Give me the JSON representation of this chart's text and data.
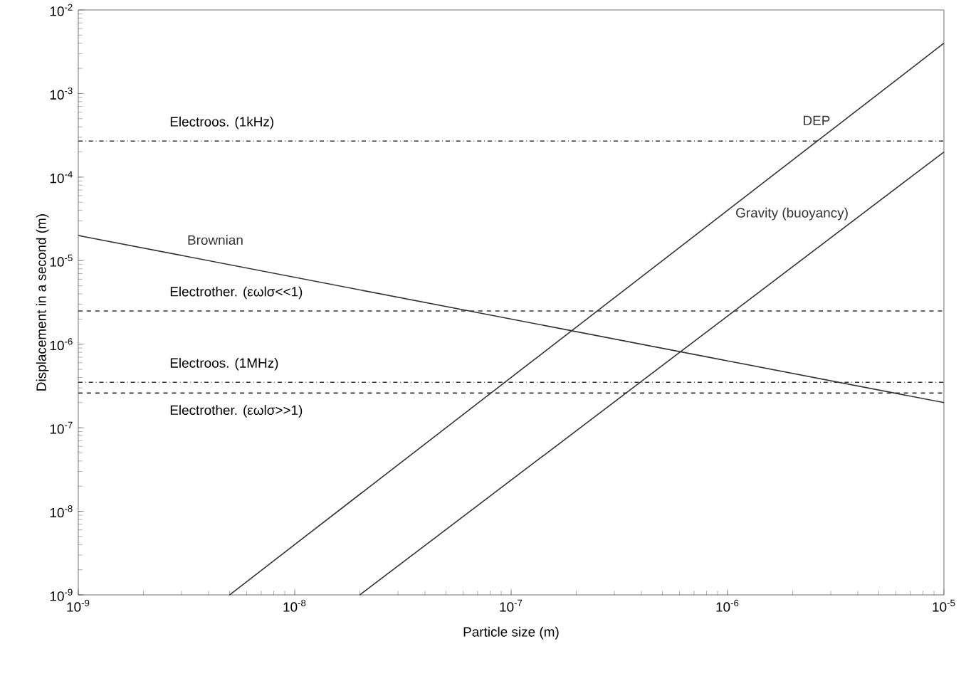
{
  "chart_data": {
    "type": "line",
    "xlabel": "Particle size (m)",
    "ylabel": "Displacement in a second (m)",
    "log": "xy",
    "xlim": [
      1e-09,
      1e-05
    ],
    "ylim": [
      1e-09,
      0.01
    ],
    "xticks": [
      {
        "value": 1e-09,
        "label": "10$^{-9}$"
      },
      {
        "value": 1e-08,
        "label": "10$^{-8}$"
      },
      {
        "value": 1e-07,
        "label": "10$^{-7}$"
      },
      {
        "value": 1e-06,
        "label": "10$^{-6}$"
      },
      {
        "value": 1e-05,
        "label": "10$^{-5}$"
      }
    ],
    "yticks": [
      {
        "value": 1e-09,
        "label": "10$^{-9}$"
      },
      {
        "value": 1e-08,
        "label": "10$^{-8}$"
      },
      {
        "value": 1e-07,
        "label": "10$^{-7}$"
      },
      {
        "value": 1e-06,
        "label": "10$^{-6}$"
      },
      {
        "value": 1e-05,
        "label": "10$^{-5}$"
      },
      {
        "value": 0.0001,
        "label": "10$^{-4}$"
      },
      {
        "value": 0.001,
        "label": "10$^{-3}$"
      },
      {
        "value": 0.01,
        "label": "10$^{-2}$"
      }
    ],
    "series": [
      {
        "name": "Brownian",
        "color": "#333333",
        "x": [
          1e-09,
          1e-05
        ],
        "values": [
          2e-05,
          2e-07
        ]
      },
      {
        "name": "DEP",
        "color": "#333333",
        "x": [
          5e-09,
          1e-05
        ],
        "values": [
          1e-09,
          0.004
        ]
      },
      {
        "name": "Gravity (buoyancy)",
        "color": "#333333",
        "x": [
          2e-08,
          1e-05
        ],
        "values": [
          1e-09,
          0.0002
        ]
      }
    ],
    "ref_lines": [
      {
        "axis": "y",
        "value": 0.00027,
        "label": "Electroos. (1kHz)",
        "line_style": "dashdot",
        "color": "#333333"
      },
      {
        "axis": "y",
        "value": 2.5e-06,
        "label": "Electrother. (εωlσ<<1)",
        "line_style": "dashed",
        "color": "#333333"
      },
      {
        "axis": "y",
        "value": 3.5e-07,
        "label": "Electroos. (1MHz)",
        "line_style": "dashdot",
        "color": "#333333"
      },
      {
        "axis": "y",
        "value": 2.6e-07,
        "label": "Electrother. (εωlσ>>1)",
        "line_style": "dashed",
        "color": "#333333"
      }
    ]
  }
}
